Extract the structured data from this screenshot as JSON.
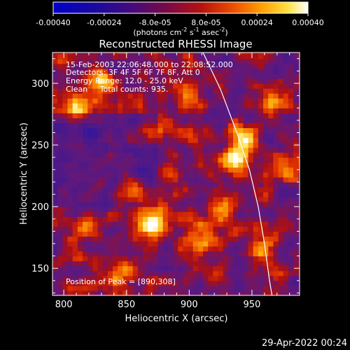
{
  "chart_data": {
    "type": "heatmap",
    "title": "Reconstructed RHESSI Image",
    "xlabel": "Heliocentric X (arcsec)",
    "ylabel": "Heliocentric Y (arcsec)",
    "xlim": [
      791,
      988
    ],
    "ylim": [
      128,
      325
    ],
    "xticks": [
      800,
      850,
      900,
      950
    ],
    "yticks": [
      150,
      200,
      250,
      300
    ],
    "colorbar": {
      "min": -0.0004,
      "max": 0.0004,
      "ticks": [
        "-0.00040",
        "-0.00024",
        "-8.0e-05",
        "8.0e-05",
        "0.00024",
        "0.00040"
      ],
      "unit_main": "(photons cm",
      "unit_exp1": "-2",
      "unit_mid": " s",
      "unit_exp2": "-1",
      "unit_end": " asec",
      "unit_exp3": "-2",
      "unit_close": ")"
    },
    "grid_resolution_arcsec": 4,
    "peak": [
      890,
      308
    ],
    "bright_sources": [
      {
        "x": 870,
        "y": 188,
        "value": 0.00038
      },
      {
        "x": 938,
        "y": 238,
        "value": 0.00036
      },
      {
        "x": 945,
        "y": 255,
        "value": 0.00028
      },
      {
        "x": 812,
        "y": 280,
        "value": 0.0003
      },
      {
        "x": 830,
        "y": 300,
        "value": 0.00026
      },
      {
        "x": 872,
        "y": 262,
        "value": 0.00024
      },
      {
        "x": 975,
        "y": 232,
        "value": 0.00026
      },
      {
        "x": 965,
        "y": 285,
        "value": 0.00022
      },
      {
        "x": 855,
        "y": 213,
        "value": 0.0002
      },
      {
        "x": 905,
        "y": 170,
        "value": 0.00018
      },
      {
        "x": 925,
        "y": 195,
        "value": 0.00018
      },
      {
        "x": 820,
        "y": 180,
        "value": 0.00014
      },
      {
        "x": 845,
        "y": 145,
        "value": 0.00016
      },
      {
        "x": 960,
        "y": 165,
        "value": 0.00016
      },
      {
        "x": 900,
        "y": 290,
        "value": 0.00022
      }
    ],
    "limb": [
      [
        911,
        325
      ],
      [
        925,
        295
      ],
      [
        938,
        260
      ],
      [
        948,
        230
      ],
      [
        955,
        200
      ],
      [
        960,
        170
      ],
      [
        964,
        140
      ],
      [
        966,
        128
      ]
    ],
    "annotations": {
      "times": "15-Feb-2003 22:06:48.000 to 22:08:52.000",
      "detectors": "Detectors: 3F 4F 5F 6F 7F 8F, Att 0",
      "energy": "Energy Range: 12.0 - 25.0 keV",
      "clean": "Clean     Total counts: 935.",
      "peak_label": "Position of Peak = [890,308]"
    }
  },
  "footer": {
    "timestamp": "29-Apr-2022 00:24"
  }
}
